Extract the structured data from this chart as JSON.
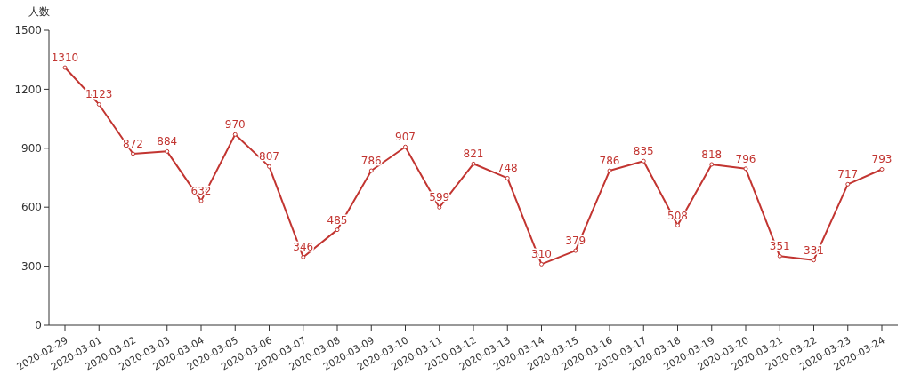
{
  "chart_data": {
    "type": "line",
    "ylabel": "人数",
    "categories": [
      "2020-02-29",
      "2020-03-01",
      "2020-03-02",
      "2020-03-03",
      "2020-03-04",
      "2020-03-05",
      "2020-03-06",
      "2020-03-07",
      "2020-03-08",
      "2020-03-09",
      "2020-03-10",
      "2020-03-11",
      "2020-03-12",
      "2020-03-13",
      "2020-03-14",
      "2020-03-15",
      "2020-03-16",
      "2020-03-17",
      "2020-03-18",
      "2020-03-19",
      "2020-03-20",
      "2020-03-21",
      "2020-03-22",
      "2020-03-23",
      "2020-03-24"
    ],
    "series": [
      {
        "color": "#c23531",
        "values": [
          1310,
          1123,
          872,
          884,
          632,
          970,
          807,
          346,
          485,
          786,
          907,
          599,
          821,
          748,
          310,
          379,
          786,
          835,
          508,
          818,
          796,
          351,
          331,
          717,
          793
        ]
      }
    ],
    "ylim": [
      0,
      1500
    ],
    "yticks": [
      0,
      300,
      600,
      900,
      1200,
      1500
    ],
    "grid": false,
    "legend": false,
    "marker": "circle",
    "line_style": "solid",
    "data_labels": true
  }
}
